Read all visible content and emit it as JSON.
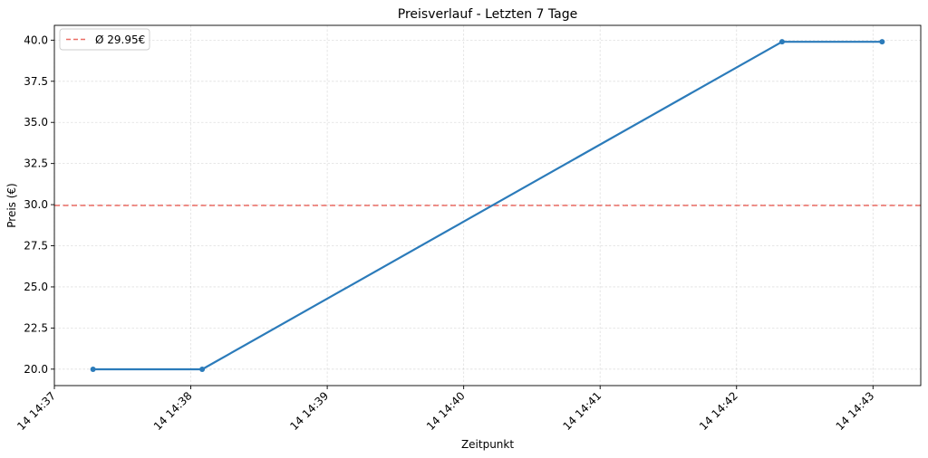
{
  "chart_data": {
    "type": "line",
    "title": "Preisverlauf - Letzten 7 Tage",
    "xlabel": "Zeitpunkt",
    "ylabel": "Preis (€)",
    "x_tick_labels": [
      "14 14:37",
      "14 14:38",
      "14 14:39",
      "14 14:40",
      "14 14:41",
      "14 14:42",
      "14 14:43"
    ],
    "y_tick_labels": [
      "20.0",
      "22.5",
      "25.0",
      "27.5",
      "30.0",
      "32.5",
      "35.0",
      "37.5",
      "40.0"
    ],
    "y_ticks": [
      20.0,
      22.5,
      25.0,
      27.5,
      30.0,
      32.5,
      35.0,
      37.5,
      40.0
    ],
    "ylim": [
      19.0,
      40.9
    ],
    "xlim": [
      "14:37:00",
      "14:43:21"
    ],
    "grid": true,
    "series": [
      {
        "color": "#2b7bba",
        "points": [
          {
            "x": "14:37:17",
            "y": 19.99
          },
          {
            "x": "14:38:05",
            "y": 19.99
          },
          {
            "x": "14:42:20",
            "y": 39.9
          },
          {
            "x": "14:43:04",
            "y": 39.9
          }
        ]
      }
    ],
    "reference_line": {
      "y": 29.95,
      "label": "Ø 29.95€",
      "color": "#e8534a",
      "style": "dashed"
    },
    "legend_position": "top-left"
  }
}
